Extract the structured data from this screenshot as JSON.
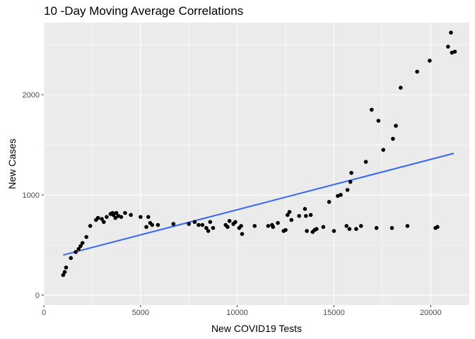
{
  "chart_data": {
    "type": "scatter",
    "title": "10 -Day Moving Average Correlations",
    "xlabel": "New COVID19 Tests",
    "ylabel": "New Cases",
    "xlim": [
      0,
      22000
    ],
    "ylim": [
      -100,
      2720
    ],
    "xticks": [
      0,
      5000,
      10000,
      15000,
      20000
    ],
    "yticks": [
      0,
      1000,
      2000
    ],
    "grid": true,
    "background": "#ebebeb",
    "point_color": "#000000",
    "trend_color": "#3366ff",
    "trend_line": {
      "x": [
        1000,
        21200
      ],
      "y": [
        400,
        1415
      ]
    },
    "points": [
      [
        1000,
        200
      ],
      [
        1080,
        230
      ],
      [
        1150,
        275
      ],
      [
        1400,
        370
      ],
      [
        1650,
        430
      ],
      [
        1800,
        460
      ],
      [
        1900,
        490
      ],
      [
        2000,
        520
      ],
      [
        2200,
        580
      ],
      [
        2400,
        690
      ],
      [
        2700,
        750
      ],
      [
        2800,
        770
      ],
      [
        3000,
        760
      ],
      [
        3100,
        730
      ],
      [
        3250,
        780
      ],
      [
        3450,
        810
      ],
      [
        3550,
        820
      ],
      [
        3600,
        800
      ],
      [
        3700,
        770
      ],
      [
        3750,
        820
      ],
      [
        3850,
        790
      ],
      [
        4000,
        780
      ],
      [
        4200,
        820
      ],
      [
        4500,
        800
      ],
      [
        5000,
        780
      ],
      [
        5300,
        680
      ],
      [
        5400,
        780
      ],
      [
        5500,
        720
      ],
      [
        5600,
        700
      ],
      [
        5900,
        700
      ],
      [
        6700,
        710
      ],
      [
        7500,
        710
      ],
      [
        7800,
        730
      ],
      [
        8000,
        700
      ],
      [
        8200,
        700
      ],
      [
        8400,
        670
      ],
      [
        8500,
        640
      ],
      [
        8600,
        730
      ],
      [
        8750,
        670
      ],
      [
        9400,
        700
      ],
      [
        9500,
        680
      ],
      [
        9600,
        740
      ],
      [
        9800,
        710
      ],
      [
        9900,
        730
      ],
      [
        10100,
        670
      ],
      [
        10200,
        690
      ],
      [
        10250,
        610
      ],
      [
        10900,
        690
      ],
      [
        11600,
        690
      ],
      [
        11800,
        700
      ],
      [
        11850,
        680
      ],
      [
        12100,
        720
      ],
      [
        12400,
        640
      ],
      [
        12500,
        650
      ],
      [
        12600,
        800
      ],
      [
        12700,
        830
      ],
      [
        12800,
        750
      ],
      [
        13200,
        790
      ],
      [
        13500,
        860
      ],
      [
        13550,
        790
      ],
      [
        13600,
        640
      ],
      [
        13800,
        800
      ],
      [
        13900,
        630
      ],
      [
        14000,
        650
      ],
      [
        14100,
        660
      ],
      [
        14450,
        680
      ],
      [
        14750,
        930
      ],
      [
        15000,
        640
      ],
      [
        15200,
        990
      ],
      [
        15350,
        1000
      ],
      [
        15650,
        690
      ],
      [
        15700,
        1050
      ],
      [
        15800,
        660
      ],
      [
        15850,
        1130
      ],
      [
        15900,
        1220
      ],
      [
        16150,
        660
      ],
      [
        16400,
        690
      ],
      [
        16650,
        1330
      ],
      [
        16950,
        1850
      ],
      [
        17200,
        670
      ],
      [
        17300,
        1740
      ],
      [
        17550,
        1450
      ],
      [
        18000,
        670
      ],
      [
        18050,
        1560
      ],
      [
        18200,
        1690
      ],
      [
        18450,
        2070
      ],
      [
        18800,
        690
      ],
      [
        19300,
        2230
      ],
      [
        19950,
        2340
      ],
      [
        20250,
        670
      ],
      [
        20350,
        680
      ],
      [
        20900,
        2480
      ],
      [
        21050,
        2620
      ],
      [
        21100,
        2420
      ],
      [
        21250,
        2430
      ]
    ]
  }
}
